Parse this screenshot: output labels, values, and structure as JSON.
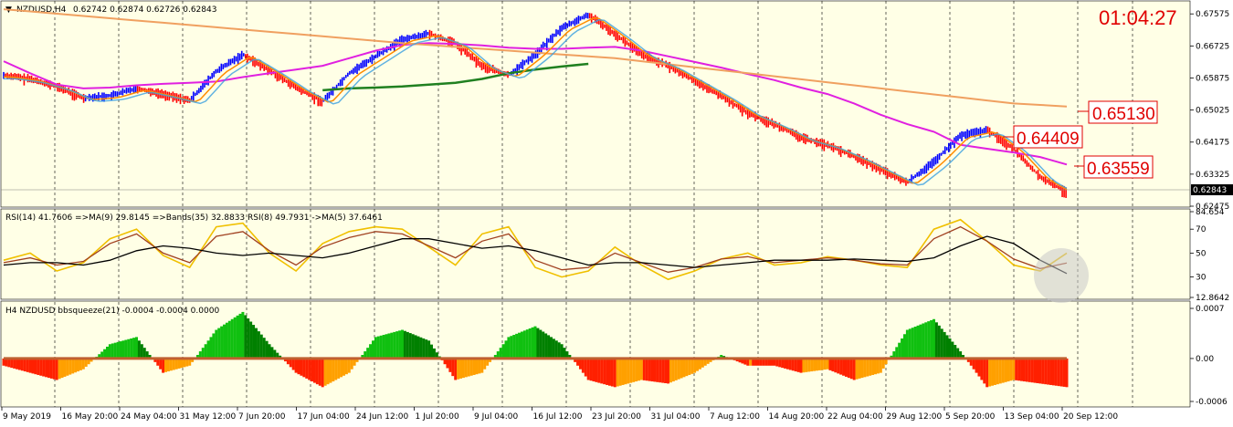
{
  "chart_header": {
    "symbol_label": "NZDUSD,H4",
    "ohlc": "0.62742 0.62874 0.62726 0.62843"
  },
  "clock": "01:04:27",
  "level_labels": [
    "0.65130",
    "0.64409",
    "0.63559"
  ],
  "current_price_label": "0.62843",
  "rsi_header": "RSI(14) 41.7606 =>MA(9) 29.8145 =>Bands(35) 32.8833 RSI(8) 49.7931 ->MA(5) 37.6461",
  "bbsqueeze_header": "H4 NZDUSD bbsqueeze(21) -0.0004 -0.0004 0.0000",
  "colors": {
    "background": "#ffffe6",
    "bull": "#0000ff",
    "bear": "#ff0000",
    "ma_magenta": "#e020e0",
    "ma_orange_long": "#f0a060",
    "ma_green": "#208020",
    "rsi_yellow": "#f0c000",
    "rsi_brown": "#a04020",
    "rsi_black": "#000000",
    "squeeze_green": "#10c010",
    "squeeze_red": "#ff2000",
    "squeeze_orange": "#ffa000"
  },
  "chart_data": [
    {
      "type": "line",
      "name": "price",
      "ylim": [
        0.62475,
        0.6775
      ],
      "y_ticks": [
        "0.67575",
        "0.66725",
        "0.65875",
        "0.65025",
        "0.64175",
        "0.63325",
        "0.62475"
      ],
      "x_ticks": [
        "9 May 2019",
        "16 May 20:00",
        "24 May 04:00",
        "31 May 12:00",
        "7 Jun 20:00",
        "17 Jun 04:00",
        "24 Jun 12:00",
        "1 Jul 20:00",
        "9 Jul 04:00",
        "16 Jul 12:00",
        "23 Jul 20:00",
        "31 Jul 04:00",
        "7 Aug 12:00",
        "14 Aug 20:00",
        "22 Aug 04:00",
        "29 Aug 12:00",
        "5 Sep 20:00",
        "13 Sep 04:00",
        "20 Sep 12:00"
      ],
      "x": [
        0,
        10,
        20,
        30,
        40,
        50,
        60,
        70,
        80,
        90,
        100,
        110,
        120,
        130,
        140,
        150,
        160,
        170,
        180,
        190,
        200,
        210,
        220,
        230,
        240,
        250,
        260,
        270,
        280,
        290,
        300,
        310,
        320,
        330,
        340,
        350,
        360,
        370,
        380,
        390,
        400
      ],
      "close": [
        0.6595,
        0.6585,
        0.6565,
        0.6535,
        0.654,
        0.656,
        0.6545,
        0.6528,
        0.6605,
        0.665,
        0.6608,
        0.6562,
        0.6525,
        0.66,
        0.6645,
        0.669,
        0.6705,
        0.668,
        0.662,
        0.6595,
        0.665,
        0.672,
        0.6755,
        0.6705,
        0.665,
        0.662,
        0.658,
        0.654,
        0.6495,
        0.6465,
        0.643,
        0.641,
        0.638,
        0.6345,
        0.631,
        0.6365,
        0.6435,
        0.645,
        0.64,
        0.6325,
        0.6284
      ],
      "series": [
        {
          "name": "MA magenta",
          "values": [
            0.6632,
            0.66,
            0.657,
            0.656,
            0.6562,
            0.6568,
            0.6572,
            0.6575,
            0.6578,
            0.659,
            0.66,
            0.661,
            0.662,
            0.664,
            0.666,
            0.6675,
            0.668,
            0.6678,
            0.6674,
            0.6668,
            0.6665,
            0.6665,
            0.6668,
            0.667,
            0.666,
            0.6645,
            0.663,
            0.6615,
            0.6598,
            0.6582,
            0.6562,
            0.6545,
            0.652,
            0.649,
            0.6465,
            0.6445,
            0.641,
            0.64,
            0.639,
            0.6378,
            0.6358
          ]
        },
        {
          "name": "MA orange long",
          "values": [
            0.677,
            0.6764,
            0.6758,
            0.6752,
            0.6746,
            0.674,
            0.6734,
            0.6728,
            0.6722,
            0.6716,
            0.671,
            0.6704,
            0.6698,
            0.6692,
            0.6686,
            0.668,
            0.6675,
            0.667,
            0.6665,
            0.666,
            0.6655,
            0.665,
            0.6645,
            0.664,
            0.6632,
            0.6624,
            0.6616,
            0.6608,
            0.66,
            0.6592,
            0.6584,
            0.6576,
            0.6568,
            0.656,
            0.6552,
            0.6544,
            0.6536,
            0.6528,
            0.652,
            0.6516,
            0.6512
          ]
        },
        {
          "name": "MA green",
          "values": [
            null,
            null,
            null,
            null,
            null,
            null,
            null,
            null,
            null,
            null,
            null,
            null,
            0.6555,
            0.656,
            0.6562,
            0.6565,
            0.657,
            0.6575,
            0.6585,
            0.66,
            0.661,
            0.6618,
            0.6625,
            null,
            null,
            null,
            null,
            null,
            null,
            null,
            null,
            null,
            null,
            null,
            null,
            null,
            null,
            null,
            null,
            null,
            null
          ]
        }
      ]
    },
    {
      "type": "line",
      "name": "RSI",
      "ylim": [
        12.8642,
        84.654
      ],
      "y_ticks": [
        "84.654",
        "70",
        "50",
        "30",
        "12.8642"
      ],
      "series": [
        {
          "name": "RSI(8)",
          "values": [
            44,
            50,
            35,
            42,
            62,
            70,
            48,
            38,
            72,
            75,
            50,
            35,
            58,
            68,
            72,
            70,
            55,
            40,
            66,
            72,
            38,
            30,
            35,
            55,
            40,
            28,
            35,
            45,
            50,
            40,
            42,
            47,
            44,
            40,
            38,
            70,
            78,
            60,
            40,
            35,
            50
          ]
        },
        {
          "name": "RSI(14)",
          "values": [
            42,
            46,
            40,
            43,
            58,
            66,
            50,
            42,
            64,
            68,
            52,
            40,
            55,
            63,
            68,
            66,
            56,
            46,
            60,
            66,
            44,
            36,
            38,
            50,
            42,
            34,
            38,
            45,
            47,
            42,
            44,
            46,
            44,
            41,
            40,
            62,
            72,
            60,
            45,
            37,
            41.76
          ]
        },
        {
          "name": "MA",
          "values": [
            40,
            42,
            42,
            40,
            44,
            52,
            56,
            54,
            50,
            48,
            50,
            48,
            46,
            50,
            56,
            62,
            62,
            58,
            54,
            56,
            52,
            46,
            40,
            42,
            42,
            40,
            38,
            40,
            42,
            44,
            44,
            44,
            45,
            44,
            43,
            46,
            56,
            64,
            58,
            44,
            32.88
          ]
        }
      ]
    },
    {
      "type": "bar",
      "name": "bbsqueeze",
      "ylim": [
        -0.0006,
        0.0007
      ],
      "y_ticks": [
        "0.0007",
        "0.00",
        "-0.0006"
      ],
      "values": [
        -0.0001,
        -0.0002,
        -0.0003,
        -0.00015,
        0.0002,
        0.0003,
        -0.0002,
        -0.0001,
        0.0004,
        0.00065,
        0.0002,
        -0.0002,
        -0.0004,
        -0.0002,
        0.0003,
        0.0004,
        0.00025,
        -0.0003,
        -0.0002,
        0.0003,
        0.00045,
        0.0002,
        -0.0003,
        -0.0004,
        -0.0003,
        -0.00035,
        -0.0002,
        5e-05,
        -0.0001,
        -0.0001,
        -0.0002,
        -0.00015,
        -0.0003,
        -0.0002,
        0.0004,
        0.00055,
        0.0001,
        -0.0004,
        -0.0003,
        -0.00035,
        -0.0004
      ]
    }
  ]
}
